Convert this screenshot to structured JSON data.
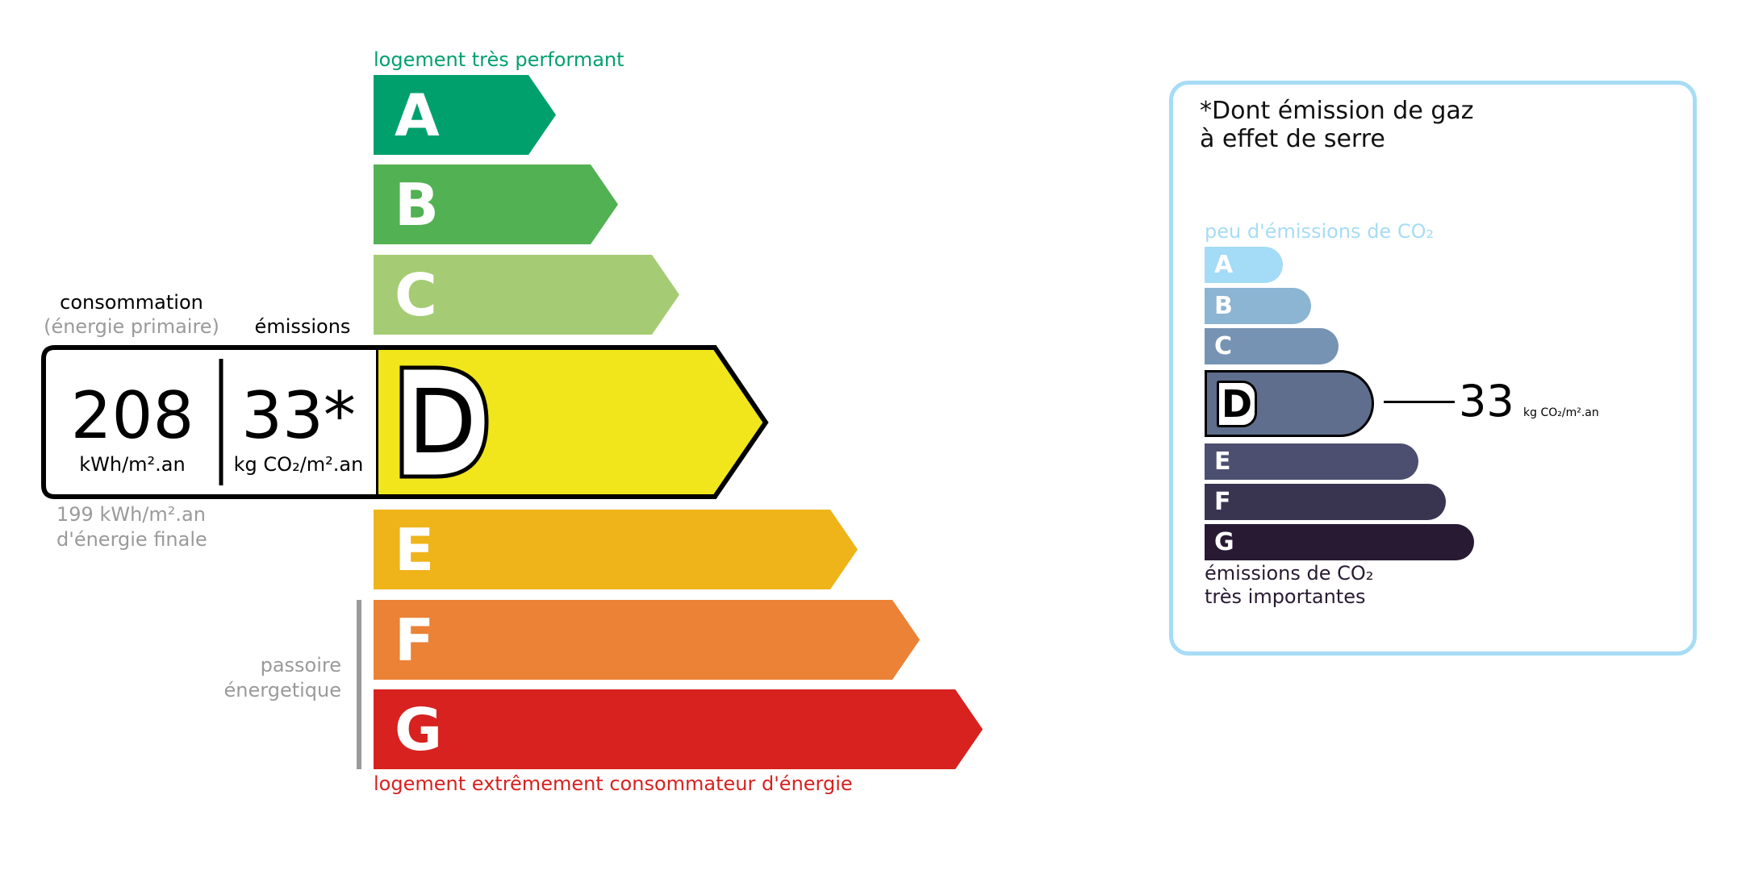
{
  "energy": {
    "top_label": "logement très performant",
    "bottom_label": "logement extrêmement consommateur d'énergie",
    "passoire": [
      "passoire",
      "énergetique"
    ],
    "classes": [
      {
        "letter": "A",
        "color": "#00a06d"
      },
      {
        "letter": "B",
        "color": "#52b153"
      },
      {
        "letter": "C",
        "color": "#a5cc74"
      },
      {
        "letter": "D",
        "color": "#f0e61b"
      },
      {
        "letter": "E",
        "color": "#efb41a"
      },
      {
        "letter": "F",
        "color": "#eb8235"
      },
      {
        "letter": "G",
        "color": "#d7221f"
      }
    ],
    "active_class": "D",
    "consumption_label": "consommation",
    "consumption_sub": "(énergie primaire)",
    "emissions_label": "émissions",
    "consumption_value": "208",
    "consumption_unit": "kWh/m².an",
    "emissions_value": "33*",
    "emissions_unit": "kg CO₂/m².an",
    "final_energy_value": "199 kWh/m².an",
    "final_energy_label": "d'énergie finale"
  },
  "ges": {
    "title_line1": "*Dont émission de gaz",
    "title_line2": "à effet de serre",
    "top_label": "peu d'émissions de CO₂",
    "bottom_label_line1": "émissions de CO₂",
    "bottom_label_line2": "très importantes",
    "classes": [
      {
        "letter": "A",
        "color": "#a4dbf6"
      },
      {
        "letter": "B",
        "color": "#8cb4d3"
      },
      {
        "letter": "C",
        "color": "#7793b3"
      },
      {
        "letter": "D",
        "color": "#5f6e8d"
      },
      {
        "letter": "E",
        "color": "#4c4f6f"
      },
      {
        "letter": "F",
        "color": "#393551"
      },
      {
        "letter": "G",
        "color": "#281a33"
      }
    ],
    "active_class": "D",
    "value": "33",
    "unit": "kg CO₂/m².an",
    "border_color": "#a6dcf5"
  }
}
